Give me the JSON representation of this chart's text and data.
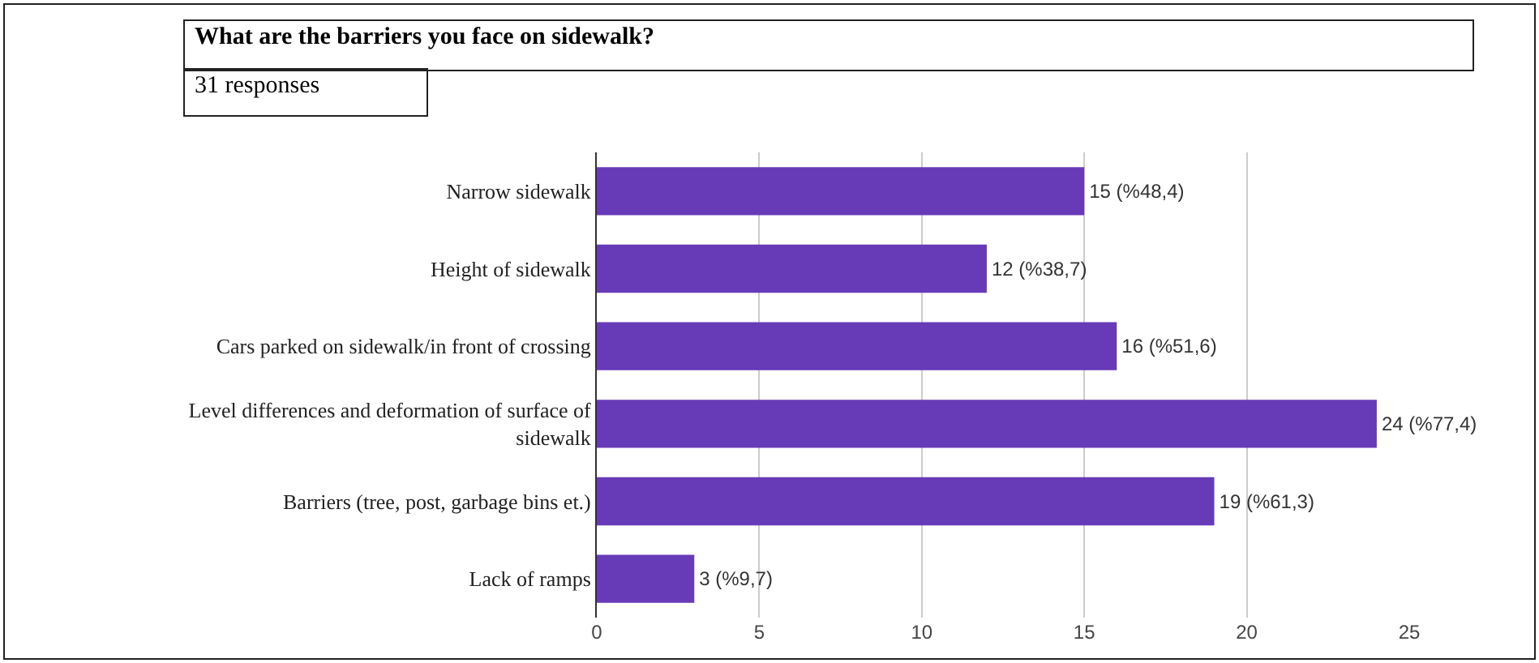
{
  "chart_data": {
    "type": "bar",
    "orientation": "horizontal",
    "title": "What are the barriers you face on sidewalk?",
    "subtitle": "31 responses",
    "categories": [
      "Narrow sidewalk",
      "Height of sidewalk",
      "Cars parked on sidewalk/in front of crossing",
      "Level differences and deformation of surface of sidewalk",
      "Barriers (tree, post, garbage bins et.)",
      "Lack of ramps"
    ],
    "values": [
      15,
      12,
      16,
      24,
      19,
      3
    ],
    "value_labels": [
      "15 (%48,4)",
      "12 (%38,7)",
      "16 (%51,6)",
      "24 (%77,4)",
      "19 (%61,3)",
      "3 (%9,7)"
    ],
    "color": "#673ab7",
    "xlim": [
      0,
      25
    ],
    "xticks": [
      0,
      5,
      10,
      15,
      20,
      25
    ],
    "grid": "x"
  }
}
